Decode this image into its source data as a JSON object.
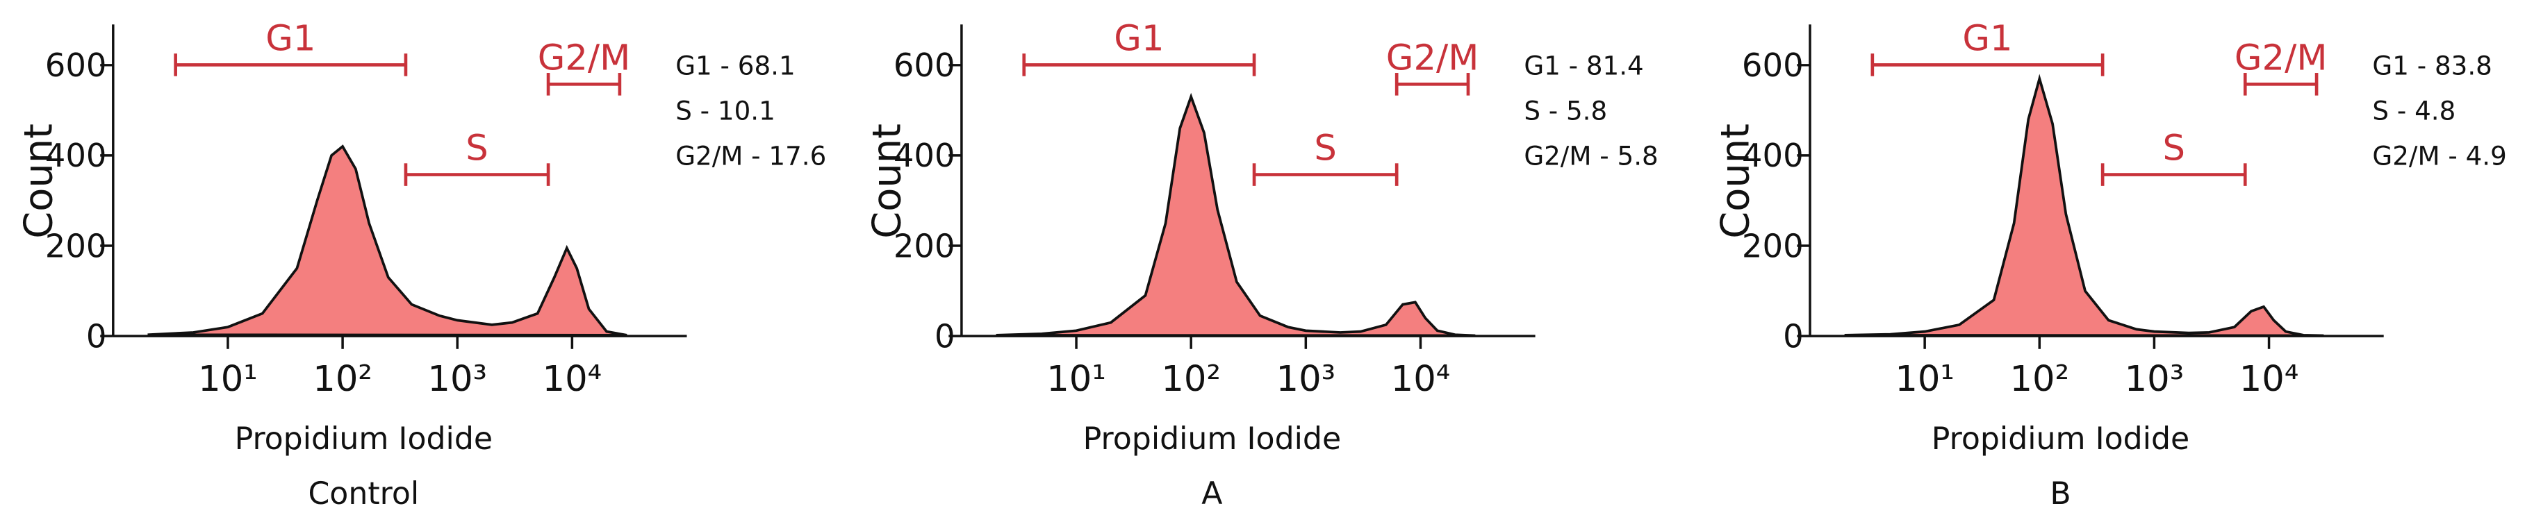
{
  "chart_data": [
    {
      "type": "area",
      "caption": "Control",
      "x_label": "Propidium Iodide",
      "y_label": "Count",
      "xscale": "log",
      "x": [
        2,
        5,
        10,
        20,
        40,
        60,
        80,
        100,
        130,
        170,
        250,
        400,
        700,
        1000,
        2000,
        3000,
        5000,
        7000,
        9000,
        11000,
        14000,
        20000,
        30000
      ],
      "values": [
        3,
        8,
        20,
        50,
        150,
        300,
        400,
        420,
        370,
        250,
        130,
        70,
        45,
        35,
        25,
        30,
        50,
        130,
        195,
        150,
        60,
        10,
        2
      ],
      "color": "#f47f7f",
      "xlim": [
        1,
        100000
      ],
      "ylim": [
        0,
        690
      ],
      "xticks": [
        {
          "value": 10,
          "label": "10¹"
        },
        {
          "value": 100,
          "label": "10²"
        },
        {
          "value": 1000,
          "label": "10³"
        },
        {
          "value": 10000,
          "label": "10⁴"
        }
      ],
      "yticks": [
        0,
        200,
        400,
        600
      ],
      "gate_color": "#c8323a",
      "gates": [
        {
          "label": "G1",
          "range": [
            3.5,
            355
          ]
        },
        {
          "label": "S",
          "range": [
            355,
            6200
          ]
        },
        {
          "label": "G2/M",
          "range": [
            6200,
            26000
          ]
        }
      ],
      "annotations": [
        "G1 - 68.1",
        "S - 10.1",
        "G2/M - 17.6"
      ]
    },
    {
      "type": "area",
      "caption": "A",
      "x_label": "Propidium Iodide",
      "y_label": "Count",
      "xscale": "log",
      "x": [
        2,
        5,
        10,
        20,
        40,
        60,
        80,
        100,
        130,
        170,
        250,
        400,
        700,
        1000,
        2000,
        3000,
        5000,
        7000,
        9000,
        11000,
        14000,
        20000,
        30000
      ],
      "values": [
        2,
        5,
        12,
        30,
        90,
        250,
        460,
        530,
        450,
        280,
        120,
        45,
        20,
        12,
        8,
        10,
        25,
        70,
        75,
        40,
        12,
        3,
        1
      ],
      "color": "#f47f7f",
      "xlim": [
        1,
        100000
      ],
      "ylim": [
        0,
        690
      ],
      "xticks": [
        {
          "value": 10,
          "label": "10¹"
        },
        {
          "value": 100,
          "label": "10²"
        },
        {
          "value": 1000,
          "label": "10³"
        },
        {
          "value": 10000,
          "label": "10⁴"
        }
      ],
      "yticks": [
        0,
        200,
        400,
        600
      ],
      "gate_color": "#c8323a",
      "gates": [
        {
          "label": "G1",
          "range": [
            3.5,
            355
          ]
        },
        {
          "label": "S",
          "range": [
            355,
            6200
          ]
        },
        {
          "label": "G2/M",
          "range": [
            6200,
            26000
          ]
        }
      ],
      "annotations": [
        "G1 - 81.4",
        "S - 5.8",
        "G2/M - 5.8"
      ]
    },
    {
      "type": "area",
      "caption": "B",
      "x_label": "Propidium Iodide",
      "y_label": "Count",
      "xscale": "log",
      "x": [
        2,
        5,
        10,
        20,
        40,
        60,
        80,
        100,
        130,
        170,
        250,
        400,
        700,
        1000,
        2000,
        3000,
        5000,
        7000,
        9000,
        11000,
        14000,
        20000,
        30000
      ],
      "values": [
        2,
        4,
        10,
        25,
        80,
        250,
        480,
        570,
        470,
        270,
        100,
        35,
        15,
        10,
        7,
        8,
        20,
        55,
        65,
        35,
        10,
        2,
        1
      ],
      "color": "#f47f7f",
      "xlim": [
        1,
        100000
      ],
      "ylim": [
        0,
        690
      ],
      "xticks": [
        {
          "value": 10,
          "label": "10¹"
        },
        {
          "value": 100,
          "label": "10²"
        },
        {
          "value": 1000,
          "label": "10³"
        },
        {
          "value": 10000,
          "label": "10⁴"
        }
      ],
      "yticks": [
        0,
        200,
        400,
        600
      ],
      "gate_color": "#c8323a",
      "gates": [
        {
          "label": "G1",
          "range": [
            3.5,
            355
          ]
        },
        {
          "label": "S",
          "range": [
            355,
            6200
          ]
        },
        {
          "label": "G2/M",
          "range": [
            6200,
            26000
          ]
        }
      ],
      "annotations": [
        "G1 - 83.8",
        "S - 4.8",
        "G2/M - 4.9"
      ]
    }
  ]
}
